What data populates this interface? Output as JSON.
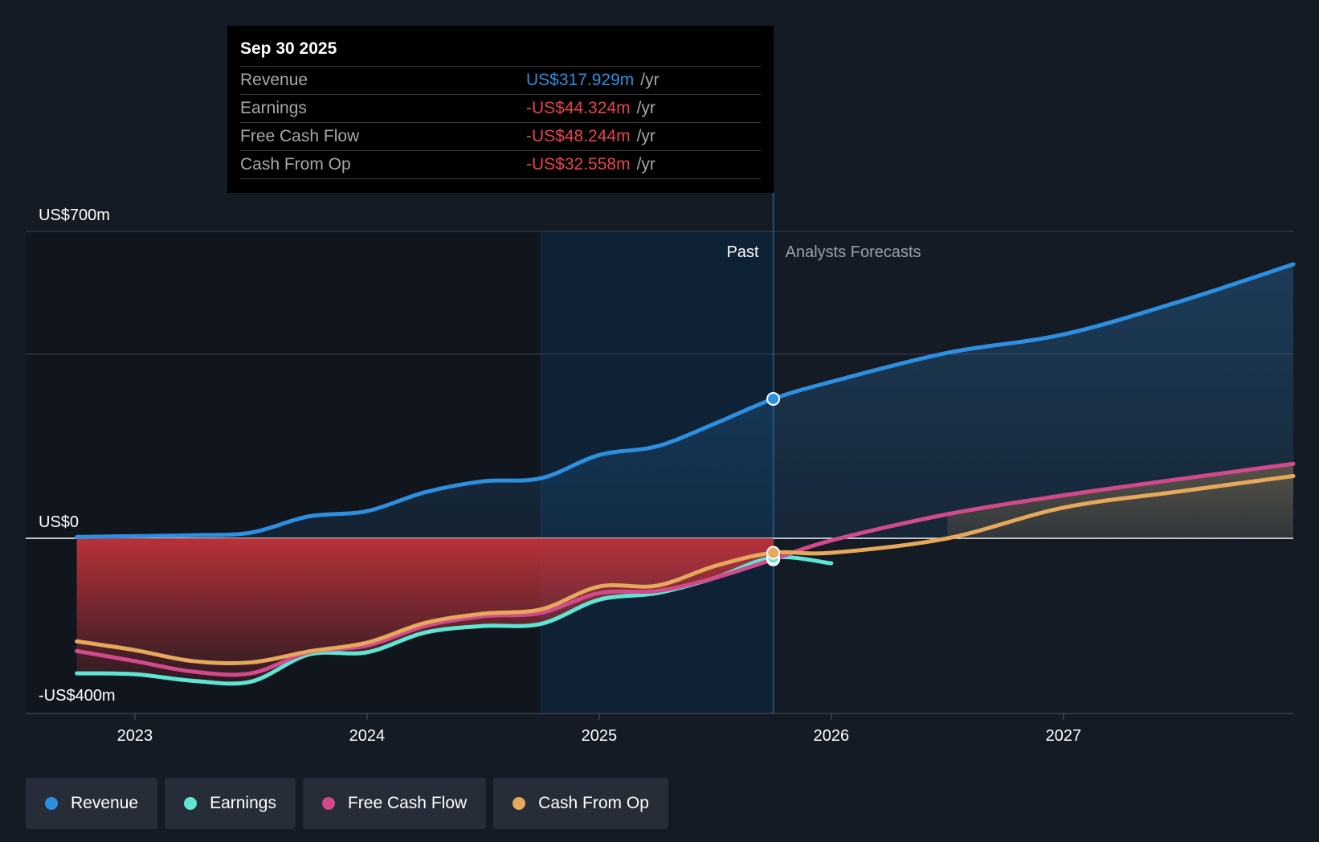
{
  "tooltip": {
    "date": "Sep 30 2025",
    "unit": "/yr",
    "rows": [
      {
        "label": "Revenue",
        "value": "US$317.929m",
        "color": "#2d8fe0"
      },
      {
        "label": "Earnings",
        "value": "-US$44.324m",
        "color": "#e8424e"
      },
      {
        "label": "Free Cash Flow",
        "value": "-US$48.244m",
        "color": "#e8424e"
      },
      {
        "label": "Cash From Op",
        "value": "-US$32.558m",
        "color": "#e8424e"
      }
    ]
  },
  "labels": {
    "past": "Past",
    "forecast": "Analysts Forecasts"
  },
  "chart_data": {
    "type": "line",
    "y_tick_labels": [
      "US$700m",
      "US$0",
      "-US$400m"
    ],
    "ylim": [
      -400,
      700
    ],
    "x_tick_labels": [
      "2023",
      "2024",
      "2025",
      "2026",
      "2027"
    ],
    "x_ticks": [
      2023.0,
      2024.0,
      2025.0,
      2026.0,
      2027.0
    ],
    "xlim": [
      2022.53,
      2027.99
    ],
    "past_boundary": 2025.75,
    "highlight_start": 2024.75,
    "series": [
      {
        "name": "Revenue",
        "color": "#2d8fe0",
        "points": [
          [
            2022.75,
            3
          ],
          [
            2023.0,
            5
          ],
          [
            2023.25,
            7
          ],
          [
            2023.5,
            13
          ],
          [
            2023.75,
            50
          ],
          [
            2024.0,
            62
          ],
          [
            2024.25,
            105
          ],
          [
            2024.5,
            130
          ],
          [
            2024.75,
            137
          ],
          [
            2025.0,
            190
          ],
          [
            2025.25,
            210
          ],
          [
            2025.5,
            262
          ],
          [
            2025.75,
            318
          ],
          [
            2026.0,
            357
          ],
          [
            2026.5,
            423
          ],
          [
            2027.0,
            465
          ],
          [
            2027.5,
            540
          ],
          [
            2027.99,
            625
          ]
        ]
      },
      {
        "name": "Earnings",
        "color": "#5ee6d3",
        "points": [
          [
            2022.75,
            -308
          ],
          [
            2023.0,
            -310
          ],
          [
            2023.25,
            -325
          ],
          [
            2023.5,
            -327
          ],
          [
            2023.75,
            -265
          ],
          [
            2024.0,
            -260
          ],
          [
            2024.25,
            -215
          ],
          [
            2024.5,
            -200
          ],
          [
            2024.75,
            -195
          ],
          [
            2025.0,
            -140
          ],
          [
            2025.25,
            -125
          ],
          [
            2025.5,
            -90
          ],
          [
            2025.75,
            -44
          ],
          [
            2026.0,
            -57
          ]
        ]
      },
      {
        "name": "Free Cash Flow",
        "color": "#d04a8c",
        "points": [
          [
            2022.75,
            -257
          ],
          [
            2023.0,
            -280
          ],
          [
            2023.25,
            -304
          ],
          [
            2023.5,
            -308
          ],
          [
            2023.75,
            -260
          ],
          [
            2024.0,
            -245
          ],
          [
            2024.25,
            -200
          ],
          [
            2024.5,
            -178
          ],
          [
            2024.75,
            -170
          ],
          [
            2025.0,
            -125
          ],
          [
            2025.25,
            -120
          ],
          [
            2025.5,
            -90
          ],
          [
            2025.75,
            -48
          ],
          [
            2026.0,
            -5
          ],
          [
            2026.5,
            55
          ],
          [
            2027.0,
            98
          ],
          [
            2027.5,
            135
          ],
          [
            2027.99,
            170
          ]
        ]
      },
      {
        "name": "Cash From Op",
        "color": "#e6a85a",
        "points": [
          [
            2022.75,
            -235
          ],
          [
            2023.0,
            -255
          ],
          [
            2023.25,
            -280
          ],
          [
            2023.5,
            -283
          ],
          [
            2023.75,
            -258
          ],
          [
            2024.0,
            -238
          ],
          [
            2024.25,
            -193
          ],
          [
            2024.5,
            -172
          ],
          [
            2024.75,
            -162
          ],
          [
            2025.0,
            -110
          ],
          [
            2025.25,
            -108
          ],
          [
            2025.5,
            -63
          ],
          [
            2025.75,
            -33
          ],
          [
            2026.0,
            -33
          ],
          [
            2026.5,
            0
          ],
          [
            2027.0,
            70
          ],
          [
            2027.5,
            107
          ],
          [
            2027.99,
            142
          ]
        ]
      }
    ]
  },
  "legend": [
    {
      "label": "Revenue",
      "color": "#2d8fe0"
    },
    {
      "label": "Earnings",
      "color": "#5ee6d3"
    },
    {
      "label": "Free Cash Flow",
      "color": "#d04a8c"
    },
    {
      "label": "Cash From Op",
      "color": "#e6a85a"
    }
  ]
}
